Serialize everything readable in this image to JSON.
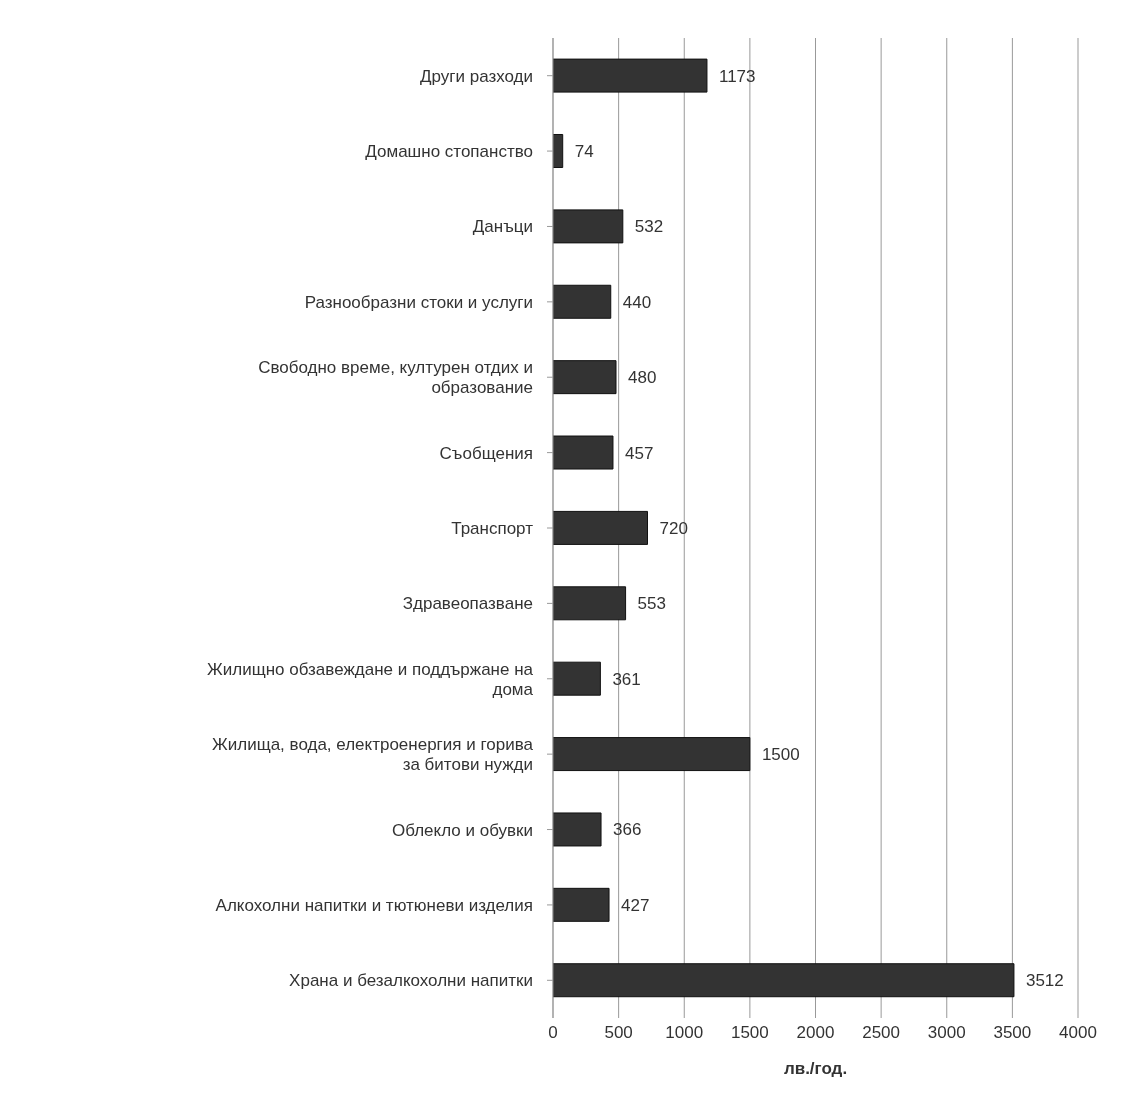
{
  "chart_data": {
    "type": "bar",
    "orientation": "horizontal",
    "xlabel": "лв./год.",
    "categories": [
      "Други разходи",
      "Домашно стопанство",
      "Данъци",
      "Разнообразни стоки и услуги",
      "Свободно време, културен отдих и образование",
      "Съобщения",
      "Транспорт",
      "Здравеопазване",
      "Жилищно обзавеждане и поддържане на дома",
      "Жилища, вода, електроенергия и горива за битови нужди",
      "Облекло и обувки",
      "Алкохолни напитки и тютюневи изделия",
      "Храна и безалкохолни напитки"
    ],
    "values": [
      1173,
      74,
      532,
      440,
      480,
      457,
      720,
      553,
      361,
      1500,
      366,
      427,
      3512
    ],
    "color": "#333333",
    "xlim": [
      0,
      4000
    ],
    "xticks": [
      0,
      500,
      1000,
      1500,
      2000,
      2500,
      3000,
      3500,
      4000
    ],
    "grid": "x",
    "data_labels": true
  }
}
